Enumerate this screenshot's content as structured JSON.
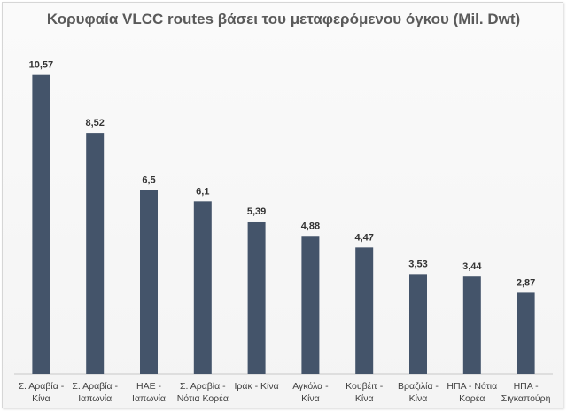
{
  "chart_data": {
    "type": "bar",
    "title": "Κορυφαία VLCC routes βάσει του μεταφερόμενου όγκου (Mil. Dwt)",
    "xlabel": "",
    "ylabel": "",
    "ylim": [
      0,
      11.5
    ],
    "grid": false,
    "categories": [
      [
        "Σ. Αραβία -",
        "Κίνα"
      ],
      [
        "Σ. Αραβία -",
        "Ιαπωνία"
      ],
      [
        "ΗΑΕ -",
        "Ιαπωνία"
      ],
      [
        "Σ. Αραβία -",
        "Νότια Κορέα"
      ],
      [
        "Ιράκ - Κίνα"
      ],
      [
        "Αγκόλα -",
        "Κίνα"
      ],
      [
        "Κουβέιτ -",
        "Κίνα"
      ],
      [
        "Βραζιλία -",
        "Κίνα"
      ],
      [
        "ΗΠΑ - Νότια",
        "Κορέα"
      ],
      [
        "ΗΠΑ -",
        "Σιγκαπούρη"
      ]
    ],
    "values": [
      10.57,
      8.52,
      6.5,
      6.1,
      5.39,
      4.88,
      4.47,
      3.53,
      3.44,
      2.87
    ],
    "value_labels": [
      "10,57",
      "8,52",
      "6,5",
      "6,1",
      "5,39",
      "4,88",
      "4,47",
      "3,53",
      "3,44",
      "2,87"
    ],
    "bar_color": "#44546a",
    "legend": "none"
  }
}
